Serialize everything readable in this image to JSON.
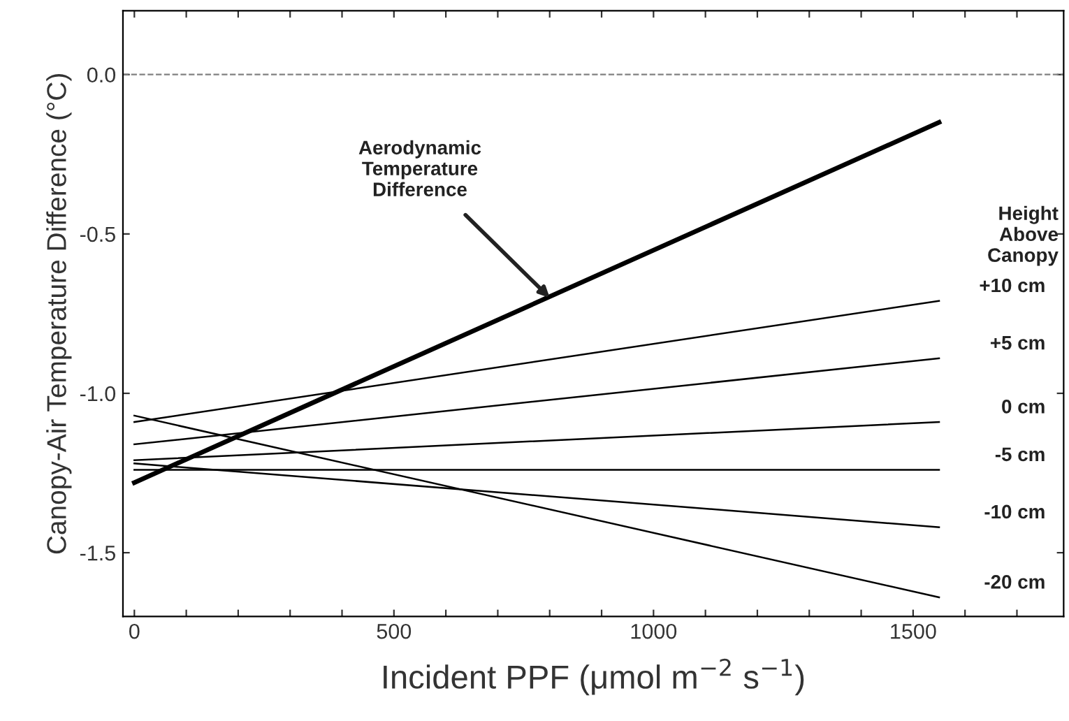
{
  "chart_data": {
    "type": "line",
    "xlabel": "Incident PPF (μmol m$^{−2}$ s$^{−1}$)",
    "ylabel": "Canopy-Air Temperature Difference (°C)",
    "legend_title": "Height\nAbove\nCanopy",
    "x": [
      0,
      1550
    ],
    "series": [
      {
        "color": "#000000",
        "values": [
          -1.28,
          -0.15
        ]
      },
      {
        "name": "+10 cm",
        "color": "#000000",
        "values": [
          -1.09,
          -0.71
        ]
      },
      {
        "name": "+5 cm",
        "color": "#000000",
        "values": [
          -1.16,
          -0.89
        ]
      },
      {
        "name": "0 cm",
        "color": "#000000",
        "values": [
          -1.21,
          -1.09
        ]
      },
      {
        "name": "-5 cm",
        "color": "#000000",
        "values": [
          -1.24,
          -1.24
        ]
      },
      {
        "name": "-10 cm",
        "color": "#000000",
        "values": [
          -1.22,
          -1.42
        ]
      },
      {
        "name": "-20 cm",
        "color": "#000000",
        "values": [
          -1.07,
          -1.64
        ]
      }
    ],
    "annotations": [
      {
        "text": "Aerodynamic\nTemperature\nDifference",
        "x": 800,
        "y": -0.7
      }
    ],
    "ref_lines": [
      {
        "axis": "y",
        "value": 0,
        "color": "#808080",
        "line_style": "dashed"
      }
    ],
    "xlim": [
      -22,
      1790
    ],
    "ylim": [
      -1.7,
      0.2
    ],
    "xticks": [
      0,
      {
        "value": 100,
        "label": null
      },
      {
        "value": 200,
        "label": null
      },
      {
        "value": 300,
        "label": null
      },
      {
        "value": 400,
        "label": null
      },
      500,
      {
        "value": 600,
        "label": null
      },
      {
        "value": 700,
        "label": null
      },
      {
        "value": 800,
        "label": null
      },
      {
        "value": 900,
        "label": null
      },
      1000,
      {
        "value": 1100,
        "label": null
      },
      {
        "value": 1200,
        "label": null
      },
      {
        "value": 1300,
        "label": null
      },
      {
        "value": 1400,
        "label": null
      },
      1500,
      {
        "value": 1600,
        "label": null
      },
      {
        "value": 1700,
        "label": null
      }
    ],
    "yticks": [
      {
        "value": 0,
        "label": "0.0"
      },
      {
        "value": -0.5,
        "label": "-0.5"
      },
      {
        "value": -1.0,
        "label": "-1.0"
      },
      {
        "value": -1.5,
        "label": "-1.5"
      }
    ],
    "grid": false,
    "legend": false,
    "marker": "none",
    "line_style": "solid"
  }
}
